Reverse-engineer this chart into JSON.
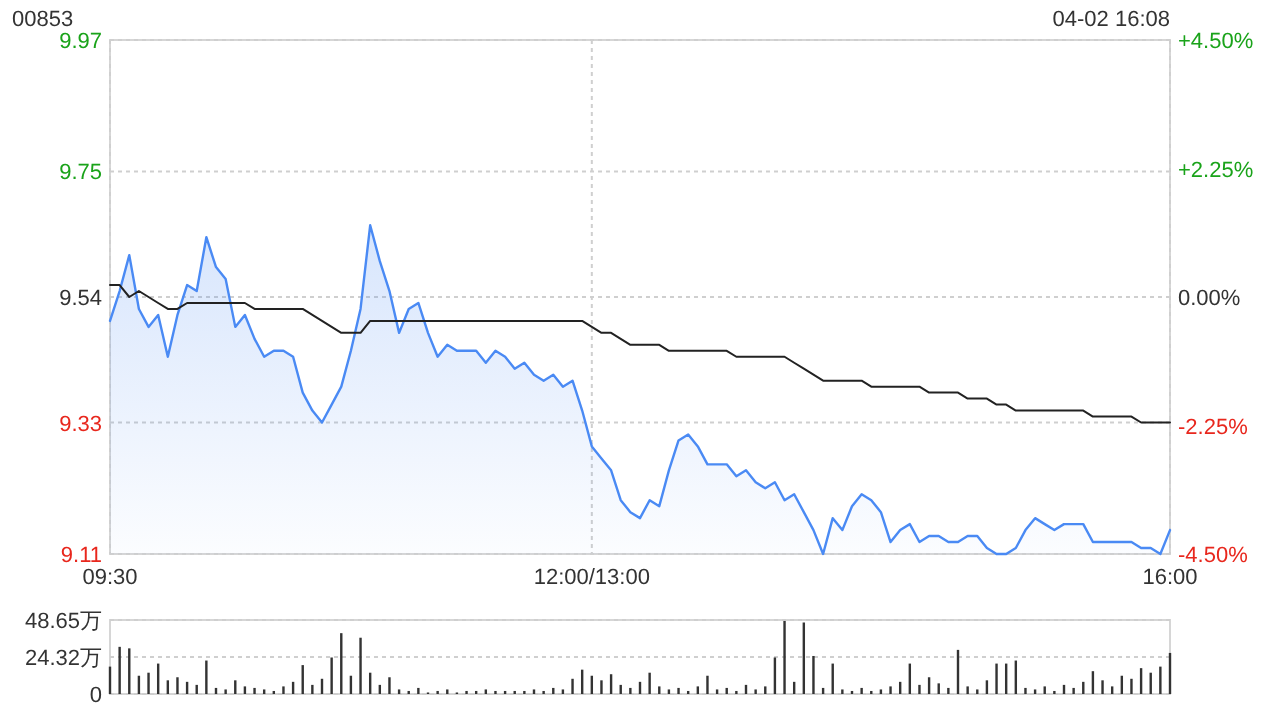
{
  "chart_data": [
    {
      "type": "area",
      "title": "00853",
      "annotations": [
        "04-02 16:08"
      ],
      "categories": [
        "09:30",
        null,
        null,
        null,
        null,
        null,
        null,
        null,
        null,
        null,
        null,
        null,
        null,
        null,
        null,
        null,
        null,
        null,
        null,
        null,
        null,
        null,
        null,
        null,
        null,
        null,
        null,
        null,
        null,
        null,
        null,
        null,
        null,
        null,
        null,
        null,
        null,
        null,
        null,
        null,
        null,
        null,
        null,
        null,
        null,
        null,
        null,
        null,
        null,
        null,
        "12:00/13:00",
        null,
        null,
        null,
        null,
        null,
        null,
        null,
        null,
        null,
        null,
        null,
        null,
        null,
        null,
        null,
        null,
        null,
        null,
        null,
        null,
        null,
        null,
        null,
        null,
        null,
        null,
        null,
        null,
        null,
        null,
        null,
        null,
        null,
        null,
        null,
        null,
        null,
        null,
        null,
        null,
        null,
        null,
        null,
        null,
        null,
        null,
        null,
        null,
        null,
        null,
        null,
        null,
        null,
        null,
        null,
        null,
        null,
        null,
        null,
        "16:00"
      ],
      "ylim": [
        9.11,
        9.97
      ],
      "yticks": [
        9.11,
        9.33,
        9.54,
        9.75,
        9.97
      ],
      "y2lim": [
        -4.5,
        4.5
      ],
      "y2ticks": [
        {
          "value": -4.5,
          "label": "-4.50%"
        },
        {
          "value": -2.25,
          "label": "-2.25%"
        },
        {
          "value": 0,
          "label": "0.00%"
        },
        {
          "value": 2.25,
          "label": "+2.25%"
        },
        {
          "value": 4.5,
          "label": "+4.50%"
        }
      ],
      "grid": true,
      "series": [
        {
          "color": "#4a8af4",
          "values": [
            9.5,
            9.55,
            9.61,
            9.52,
            9.49,
            9.51,
            9.44,
            9.51,
            9.56,
            9.55,
            9.64,
            9.59,
            9.57,
            9.49,
            9.51,
            9.47,
            9.44,
            9.45,
            9.45,
            9.44,
            9.38,
            9.35,
            9.33,
            9.36,
            9.39,
            9.45,
            9.52,
            9.66,
            9.6,
            9.55,
            9.48,
            9.52,
            9.53,
            9.48,
            9.44,
            9.46,
            9.45,
            9.45,
            9.45,
            9.43,
            9.45,
            9.44,
            9.42,
            9.43,
            9.41,
            9.4,
            9.41,
            9.39,
            9.4,
            9.35,
            9.29,
            9.27,
            9.25,
            9.2,
            9.18,
            9.17,
            9.2,
            9.19,
            9.25,
            9.3,
            9.31,
            9.29,
            9.26,
            9.26,
            9.26,
            9.24,
            9.25,
            9.23,
            9.22,
            9.23,
            9.2,
            9.21,
            9.18,
            9.15,
            9.11,
            9.17,
            9.15,
            9.19,
            9.21,
            9.2,
            9.18,
            9.13,
            9.15,
            9.16,
            9.13,
            9.14,
            9.14,
            9.13,
            9.13,
            9.14,
            9.14,
            9.12,
            9.11,
            9.11,
            9.12,
            9.15,
            9.17,
            9.16,
            9.15,
            9.16,
            9.16,
            9.16,
            9.13,
            9.13,
            9.13,
            9.13,
            9.13,
            9.12,
            9.12,
            9.11,
            9.15
          ]
        },
        {
          "type": "line",
          "color": "#222222",
          "values": [
            9.56,
            9.56,
            9.54,
            9.55,
            9.54,
            9.53,
            9.52,
            9.52,
            9.53,
            9.53,
            9.53,
            9.53,
            9.53,
            9.53,
            9.53,
            9.52,
            9.52,
            9.52,
            9.52,
            9.52,
            9.52,
            9.51,
            9.5,
            9.49,
            9.48,
            9.48,
            9.48,
            9.5,
            9.5,
            9.5,
            9.5,
            9.5,
            9.5,
            9.5,
            9.5,
            9.5,
            9.5,
            9.5,
            9.5,
            9.5,
            9.5,
            9.5,
            9.5,
            9.5,
            9.5,
            9.5,
            9.5,
            9.5,
            9.5,
            9.5,
            9.49,
            9.48,
            9.48,
            9.47,
            9.46,
            9.46,
            9.46,
            9.46,
            9.45,
            9.45,
            9.45,
            9.45,
            9.45,
            9.45,
            9.45,
            9.44,
            9.44,
            9.44,
            9.44,
            9.44,
            9.44,
            9.43,
            9.42,
            9.41,
            9.4,
            9.4,
            9.4,
            9.4,
            9.4,
            9.39,
            9.39,
            9.39,
            9.39,
            9.39,
            9.39,
            9.38,
            9.38,
            9.38,
            9.38,
            9.37,
            9.37,
            9.37,
            9.36,
            9.36,
            9.35,
            9.35,
            9.35,
            9.35,
            9.35,
            9.35,
            9.35,
            9.35,
            9.34,
            9.34,
            9.34,
            9.34,
            9.34,
            9.33,
            9.33,
            9.33,
            9.33
          ]
        }
      ]
    },
    {
      "type": "bar",
      "color": "#333333",
      "ylim": [
        0,
        48.65
      ],
      "yticks": [
        {
          "value": 0,
          "label": "0"
        },
        {
          "value": 24.32,
          "label": "24.32万"
        },
        {
          "value": 48.65,
          "label": "48.65万"
        }
      ],
      "grid": "y",
      "tick_labels": "y",
      "categories": [
        null,
        null,
        null,
        null,
        null,
        null,
        null,
        null,
        null,
        null,
        null,
        null,
        null,
        null,
        null,
        null,
        null,
        null,
        null,
        null,
        null,
        null,
        null,
        null,
        null,
        null,
        null,
        null,
        null,
        null,
        null,
        null,
        null,
        null,
        null,
        null,
        null,
        null,
        null,
        null,
        null,
        null,
        null,
        null,
        null,
        null,
        null,
        null,
        null,
        null,
        null,
        null,
        null,
        null,
        null,
        null,
        null,
        null,
        null,
        null,
        null,
        null,
        null,
        null,
        null,
        null,
        null,
        null,
        null,
        null,
        null,
        null,
        null,
        null,
        null,
        null,
        null,
        null,
        null,
        null,
        null,
        null,
        null,
        null,
        null,
        null,
        null,
        null,
        null,
        null,
        null,
        null,
        null,
        null,
        null,
        null,
        null,
        null,
        null,
        null,
        null,
        null,
        null,
        null,
        null,
        null,
        null,
        null,
        null,
        null,
        null
      ],
      "values": [
        18,
        31,
        30,
        12,
        14,
        20,
        9,
        11,
        8,
        6,
        22,
        4,
        3,
        9,
        5,
        4,
        3,
        2,
        5,
        8,
        19,
        6,
        10,
        24,
        40,
        12,
        37,
        14,
        6,
        11,
        3,
        2,
        4,
        1,
        2,
        3,
        1,
        2,
        2,
        3,
        2,
        2,
        2,
        2,
        3,
        2,
        4,
        3,
        10,
        16,
        12,
        9,
        13,
        6,
        4,
        8,
        14,
        5,
        3,
        4,
        2,
        5,
        12,
        3,
        4,
        2,
        6,
        3,
        5,
        24,
        48,
        8,
        47,
        25,
        4,
        20,
        3,
        2,
        4,
        2,
        3,
        5,
        8,
        20,
        6,
        11,
        7,
        4,
        29,
        5,
        3,
        9,
        20,
        20,
        22,
        4,
        3,
        5,
        2,
        6,
        4,
        8,
        15,
        9,
        5,
        12,
        10,
        17,
        14,
        18,
        27
      ]
    }
  ]
}
